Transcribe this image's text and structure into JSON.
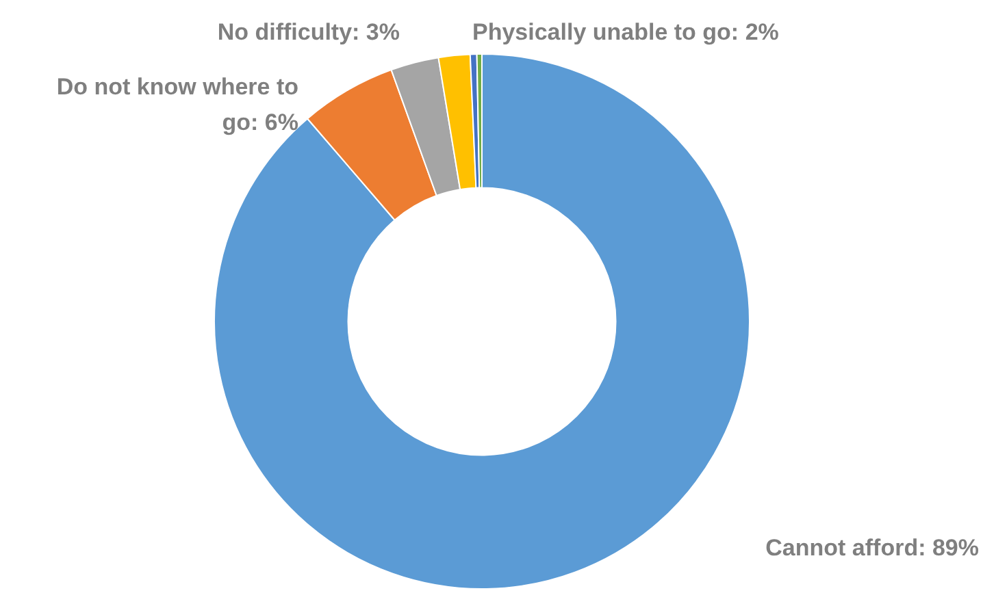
{
  "chart_data": {
    "type": "donut",
    "categories": [
      "Cannot afford",
      "Do not know where to go",
      "No difficulty",
      "Physically unable to go",
      null,
      null
    ],
    "values": [
      88.7,
      5.8,
      2.9,
      1.9,
      0.4,
      0.3
    ],
    "value_labels": [
      "89%",
      "6%",
      "3%",
      "2%",
      null,
      null
    ],
    "colors": [
      "#5b9bd5",
      "#ed7d31",
      "#a5a5a5",
      "#ffc000",
      "#4472c4",
      "#70ad47"
    ],
    "legend": false
  }
}
